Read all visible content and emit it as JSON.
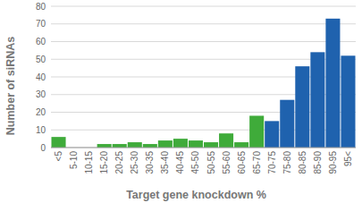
{
  "chart_data": {
    "type": "bar",
    "x_label": "Target gene knockdown %",
    "y_label": "Number of siRNAs",
    "categories": [
      "<5",
      "5-10",
      "10-15",
      "15-20",
      "20-25",
      "25-30",
      "30-35",
      "35-40",
      "40-45",
      "45-50",
      "50-55",
      "55-60",
      "60-65",
      "65-70",
      "70-75",
      "75-80",
      "80-85",
      "85-90",
      "90-95",
      "95<"
    ],
    "values": [
      6,
      0,
      0,
      2,
      2,
      3,
      2,
      4,
      5,
      4,
      3,
      8,
      3,
      18,
      15,
      27,
      46,
      54,
      73,
      52
    ],
    "colors": [
      "#3fab3a",
      "#3fab3a",
      "#3fab3a",
      "#3fab3a",
      "#3fab3a",
      "#3fab3a",
      "#3fab3a",
      "#3fab3a",
      "#3fab3a",
      "#3fab3a",
      "#3fab3a",
      "#3fab3a",
      "#3fab3a",
      "#3fab3a",
      "#1f62ae",
      "#1f62ae",
      "#1f62ae",
      "#1f62ae",
      "#1f62ae",
      "#1f62ae"
    ],
    "ylim": [
      0,
      80
    ],
    "yticks": [
      0,
      10,
      20,
      30,
      40,
      50,
      60,
      70,
      80
    ],
    "grid": true
  }
}
